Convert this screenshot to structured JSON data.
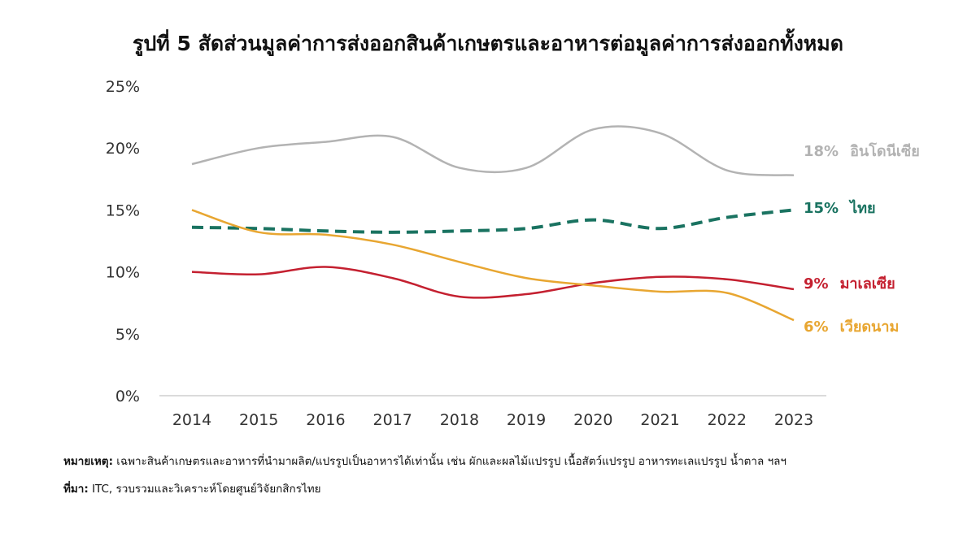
{
  "chart_data": {
    "type": "line",
    "title": "รูปที่ 5 สัดส่วนมูลค่าการส่งออกสินค้าเกษตรและอาหารต่อมูลค่าการส่งออกทั้งหมด",
    "x": [
      "2014",
      "2015",
      "2016",
      "2017",
      "2018",
      "2019",
      "2020",
      "2021",
      "2022",
      "2023"
    ],
    "yticks": [
      "0%",
      "5%",
      "10%",
      "15%",
      "20%",
      "25%"
    ],
    "ylim": [
      0,
      25
    ],
    "series": [
      {
        "name": "อินโดนีเซีย",
        "end_value": "18%",
        "color": "#b3b3b3",
        "dashed": false,
        "values": [
          18.7,
          20.0,
          20.5,
          20.9,
          18.4,
          18.4,
          21.5,
          21.2,
          18.2,
          17.8
        ]
      },
      {
        "name": "ไทย",
        "end_value": "15%",
        "color": "#1a7361",
        "dashed": true,
        "values": [
          13.6,
          13.5,
          13.3,
          13.2,
          13.3,
          13.5,
          14.2,
          13.5,
          14.4,
          15.0
        ]
      },
      {
        "name": "มาเลเซีย",
        "end_value": "9%",
        "color": "#c42030",
        "dashed": false,
        "values": [
          10.0,
          9.8,
          10.4,
          9.5,
          8.0,
          8.2,
          9.1,
          9.6,
          9.4,
          8.6
        ]
      },
      {
        "name": "เวียดนาม",
        "end_value": "6%",
        "color": "#e8a631",
        "dashed": false,
        "values": [
          15.0,
          13.2,
          13.0,
          12.2,
          10.8,
          9.5,
          8.9,
          8.4,
          8.3,
          6.1
        ]
      }
    ]
  },
  "note": {
    "label": "หมายเหตุ:",
    "text": " เฉพาะสินค้าเกษตรและอาหารที่นำมาผลิต/แปรรูปเป็นอาหารได้เท่านั้น เช่น ผักและผลไม้แปรรูป เนื้อสัตว์แปรรูป อาหารทะเลแปรรูป น้ำตาล ฯลฯ"
  },
  "source": {
    "label": "ที่มา:",
    "text": " ITC, รวบรวมและวิเคราะห์โดยศูนย์วิจัยกสิกรไทย"
  }
}
